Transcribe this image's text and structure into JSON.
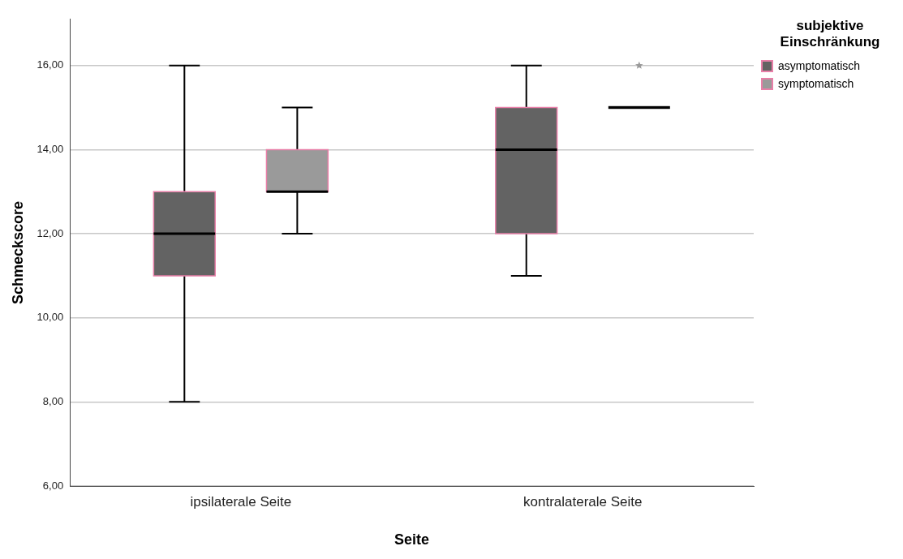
{
  "chart_data": {
    "type": "box",
    "xlabel": "Seite",
    "ylabel": "Schmeckscore",
    "legend_title": "subjektive Einschränkung",
    "categories": [
      "ipsilaterale Seite",
      "kontralaterale Seite"
    ],
    "series": [
      {
        "name": "asymptomatisch",
        "color": "#636363",
        "boxes": [
          {
            "low": 8,
            "q1": 11,
            "median": 12,
            "q3": 13,
            "high": 16
          },
          {
            "low": 11,
            "q1": 12,
            "median": 14,
            "q3": 15,
            "high": 16
          }
        ]
      },
      {
        "name": "symptomatisch",
        "color": "#9a9a9a",
        "boxes": [
          {
            "low": 12,
            "q1": 13,
            "median": 13,
            "q3": 14,
            "high": 15
          },
          {
            "low": 15,
            "q1": 15,
            "median": 15,
            "q3": 15,
            "high": 15,
            "outliers": [
              16
            ]
          }
        ]
      }
    ],
    "ylim": [
      6,
      17.1
    ],
    "yticks": [
      {
        "value": 6,
        "label": "6,00"
      },
      {
        "value": 8,
        "label": "8,00"
      },
      {
        "value": 10,
        "label": "10,00"
      },
      {
        "value": 12,
        "label": "12,00"
      },
      {
        "value": 14,
        "label": "14,00"
      },
      {
        "value": 16,
        "label": "16,00"
      }
    ],
    "grid": "y",
    "legend": "top right"
  }
}
